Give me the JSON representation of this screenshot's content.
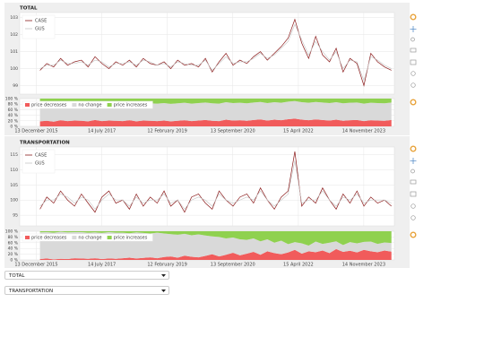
{
  "chart_data": [
    {
      "type": "line",
      "title": "TOTAL",
      "legend": "top_left",
      "grid": true,
      "x": [
        "2016-01-15",
        "2016-03-15",
        "2016-05-15",
        "2016-07-15",
        "2016-09-15",
        "2016-11-15",
        "2017-01-15",
        "2017-03-15",
        "2017-05-15",
        "2017-07-15",
        "2017-09-15",
        "2017-11-15",
        "2018-01-15",
        "2018-03-15",
        "2018-05-15",
        "2018-07-15",
        "2018-09-15",
        "2018-11-15",
        "2019-01-15",
        "2019-03-15",
        "2019-05-15",
        "2019-07-15",
        "2019-09-15",
        "2019-11-15",
        "2020-01-15",
        "2020-03-15",
        "2020-05-15",
        "2020-07-15",
        "2020-09-15",
        "2020-11-15",
        "2021-01-15",
        "2021-03-15",
        "2021-05-15",
        "2021-07-15",
        "2021-09-15",
        "2021-11-15",
        "2022-01-15",
        "2022-03-15",
        "2022-05-15",
        "2022-07-15",
        "2022-09-15",
        "2022-11-15",
        "2023-01-15",
        "2023-03-15",
        "2023-05-15",
        "2023-07-15",
        "2023-09-15",
        "2023-11-15",
        "2024-01-15",
        "2024-03-15",
        "2024-05-15",
        "2024-07-15"
      ],
      "xlim": [
        "2015-07-20",
        "2024-08-10"
      ],
      "ylim": [
        98.5,
        103.3
      ],
      "yticks": [
        99,
        100,
        101,
        102,
        103
      ],
      "series": [
        {
          "name": "CASE",
          "color": "#8b1a1a",
          "values": [
            99.9,
            100.3,
            100.1,
            100.6,
            100.2,
            100.4,
            100.5,
            100.1,
            100.7,
            100.3,
            100.0,
            100.4,
            100.2,
            100.5,
            100.1,
            100.6,
            100.3,
            100.2,
            100.4,
            100.0,
            100.5,
            100.2,
            100.3,
            100.1,
            100.6,
            99.8,
            100.4,
            100.9,
            100.2,
            100.5,
            100.3,
            100.7,
            101.0,
            100.5,
            100.9,
            101.3,
            101.8,
            102.9,
            101.5,
            100.6,
            101.9,
            100.8,
            100.4,
            101.2,
            99.8,
            100.6,
            100.3,
            99.0,
            100.9,
            100.4,
            100.1,
            99.9
          ]
        },
        {
          "name": "GUS",
          "color": "#c4c4c4",
          "values": [
            100.0,
            100.2,
            100.2,
            100.5,
            100.3,
            100.3,
            100.4,
            100.2,
            100.5,
            100.4,
            100.1,
            100.3,
            100.3,
            100.4,
            100.2,
            100.5,
            100.4,
            100.2,
            100.3,
            100.1,
            100.4,
            100.3,
            100.2,
            100.2,
            100.5,
            99.9,
            100.3,
            100.7,
            100.3,
            100.4,
            100.4,
            100.6,
            100.9,
            100.6,
            100.8,
            101.2,
            101.6,
            102.6,
            101.7,
            100.8,
            101.6,
            101.0,
            100.5,
            101.0,
            100.0,
            100.5,
            100.4,
            99.3,
            100.7,
            100.5,
            100.2,
            100.0
          ]
        }
      ]
    },
    {
      "type": "area",
      "legend": "top_left",
      "grid": true,
      "x": [
        "2016-01-15",
        "2016-03-15",
        "2016-05-15",
        "2016-07-15",
        "2016-09-15",
        "2016-11-15",
        "2017-01-15",
        "2017-03-15",
        "2017-05-15",
        "2017-07-15",
        "2017-09-15",
        "2017-11-15",
        "2018-01-15",
        "2018-03-15",
        "2018-05-15",
        "2018-07-15",
        "2018-09-15",
        "2018-11-15",
        "2019-01-15",
        "2019-03-15",
        "2019-05-15",
        "2019-07-15",
        "2019-09-15",
        "2019-11-15",
        "2020-01-15",
        "2020-03-15",
        "2020-05-15",
        "2020-07-15",
        "2020-09-15",
        "2020-11-15",
        "2021-01-15",
        "2021-03-15",
        "2021-05-15",
        "2021-07-15",
        "2021-09-15",
        "2021-11-15",
        "2022-01-15",
        "2022-03-15",
        "2022-05-15",
        "2022-07-15",
        "2022-09-15",
        "2022-11-15",
        "2023-01-15",
        "2023-03-15",
        "2023-05-15",
        "2023-07-15",
        "2023-09-15",
        "2023-11-15",
        "2024-01-15",
        "2024-03-15",
        "2024-05-15",
        "2024-07-15"
      ],
      "xlim": [
        "2015-07-20",
        "2024-08-10"
      ],
      "xticks": [
        {
          "value": "2015-12-13",
          "label": "13 December 2015"
        },
        {
          "value": "2017-07-14",
          "label": "14 July 2017"
        },
        {
          "value": "2019-02-12",
          "label": "12 February 2019"
        },
        {
          "value": "2020-09-13",
          "label": "13 September 2020"
        },
        {
          "value": "2022-04-15",
          "label": "15 April 2022"
        },
        {
          "value": "2023-11-14",
          "label": "14 November 2023"
        }
      ],
      "ylim": [
        0,
        100
      ],
      "yticks": [
        {
          "value": 0,
          "label": "0 %"
        },
        {
          "value": 20,
          "label": "20 %"
        },
        {
          "value": 40,
          "label": "40 %"
        },
        {
          "value": 60,
          "label": "60 %"
        },
        {
          "value": 80,
          "label": "80 %"
        },
        {
          "value": 100,
          "label": "100 %"
        }
      ],
      "series": [
        {
          "name": "price decreases",
          "color": "#f15b5b",
          "values": [
            18,
            20,
            17,
            22,
            19,
            21,
            20,
            18,
            23,
            19,
            21,
            20,
            19,
            22,
            18,
            21,
            20,
            19,
            21,
            18,
            20,
            22,
            19,
            21,
            23,
            20,
            19,
            24,
            21,
            22,
            20,
            23,
            25,
            21,
            24,
            22,
            26,
            28,
            24,
            22,
            25,
            23,
            21,
            24,
            20,
            22,
            23,
            19,
            22,
            21,
            20,
            23
          ]
        },
        {
          "name": "no change",
          "color": "#d9d9d9",
          "values": [
            64,
            64,
            64,
            63,
            64,
            63,
            63,
            63,
            62,
            63,
            63,
            63,
            63,
            63,
            63,
            63,
            63,
            63,
            63,
            63,
            63,
            63,
            63,
            63,
            63,
            63,
            63,
            63,
            63,
            63,
            63,
            63,
            63,
            63,
            63,
            63,
            63,
            63,
            63,
            63,
            63,
            63,
            63,
            63,
            63,
            63,
            63,
            63,
            63,
            63,
            63,
            63
          ]
        },
        {
          "name": "price increases",
          "color": "#8fd14f",
          "values": [
            18,
            16,
            19,
            15,
            17,
            16,
            17,
            19,
            15,
            18,
            16,
            17,
            18,
            15,
            19,
            16,
            17,
            18,
            16,
            19,
            17,
            15,
            18,
            16,
            14,
            17,
            18,
            13,
            16,
            15,
            17,
            14,
            12,
            16,
            13,
            15,
            11,
            9,
            13,
            15,
            12,
            14,
            16,
            13,
            17,
            15,
            14,
            18,
            15,
            16,
            17,
            14
          ]
        }
      ]
    },
    {
      "type": "line",
      "title": "TRANSPORTATION",
      "legend": "top_left",
      "grid": true,
      "x": [
        "2016-01-15",
        "2016-03-15",
        "2016-05-15",
        "2016-07-15",
        "2016-09-15",
        "2016-11-15",
        "2017-01-15",
        "2017-03-15",
        "2017-05-15",
        "2017-07-15",
        "2017-09-15",
        "2017-11-15",
        "2018-01-15",
        "2018-03-15",
        "2018-05-15",
        "2018-07-15",
        "2018-09-15",
        "2018-11-15",
        "2019-01-15",
        "2019-03-15",
        "2019-05-15",
        "2019-07-15",
        "2019-09-15",
        "2019-11-15",
        "2020-01-15",
        "2020-03-15",
        "2020-05-15",
        "2020-07-15",
        "2020-09-15",
        "2020-11-15",
        "2021-01-15",
        "2021-03-15",
        "2021-05-15",
        "2021-07-15",
        "2021-09-15",
        "2021-11-15",
        "2022-01-15",
        "2022-03-15",
        "2022-05-15",
        "2022-07-15",
        "2022-09-15",
        "2022-11-15",
        "2023-01-15",
        "2023-03-15",
        "2023-05-15",
        "2023-07-15",
        "2023-09-15",
        "2023-11-15",
        "2024-01-15",
        "2024-03-15",
        "2024-05-15",
        "2024-07-15"
      ],
      "xlim": [
        "2015-07-20",
        "2024-08-10"
      ],
      "ylim": [
        91.5,
        117.5
      ],
      "yticks": [
        95,
        100,
        105,
        110,
        115
      ],
      "series": [
        {
          "name": "CASE",
          "color": "#8b1a1a",
          "values": [
            97,
            101,
            99,
            103,
            100,
            98,
            102,
            99,
            96,
            101,
            103,
            99,
            100,
            97,
            102,
            98,
            101,
            99,
            103,
            98,
            100,
            96,
            101,
            102,
            99,
            97,
            103,
            100,
            98,
            101,
            102,
            99,
            104,
            100,
            97,
            101,
            103,
            116,
            98,
            101,
            99,
            104,
            100,
            97,
            102,
            99,
            103,
            98,
            101,
            99,
            100,
            98
          ]
        },
        {
          "name": "GUS",
          "color": "#c4c4c4",
          "values": [
            98,
            100,
            100,
            102,
            101,
            99,
            101,
            100,
            97,
            100,
            102,
            100,
            100,
            98,
            101,
            99,
            100,
            100,
            102,
            99,
            100,
            97,
            100,
            101,
            100,
            98,
            102,
            100,
            99,
            100,
            101,
            100,
            103,
            100,
            98,
            100,
            102,
            113,
            99,
            100,
            100,
            103,
            100,
            98,
            101,
            100,
            102,
            99,
            100,
            100,
            100,
            99
          ]
        }
      ]
    },
    {
      "type": "area",
      "legend": "top_left",
      "grid": true,
      "x": [
        "2016-01-15",
        "2016-03-15",
        "2016-05-15",
        "2016-07-15",
        "2016-09-15",
        "2016-11-15",
        "2017-01-15",
        "2017-03-15",
        "2017-05-15",
        "2017-07-15",
        "2017-09-15",
        "2017-11-15",
        "2018-01-15",
        "2018-03-15",
        "2018-05-15",
        "2018-07-15",
        "2018-09-15",
        "2018-11-15",
        "2019-01-15",
        "2019-03-15",
        "2019-05-15",
        "2019-07-15",
        "2019-09-15",
        "2019-11-15",
        "2020-01-15",
        "2020-03-15",
        "2020-05-15",
        "2020-07-15",
        "2020-09-15",
        "2020-11-15",
        "2021-01-15",
        "2021-03-15",
        "2021-05-15",
        "2021-07-15",
        "2021-09-15",
        "2021-11-15",
        "2022-01-15",
        "2022-03-15",
        "2022-05-15",
        "2022-07-15",
        "2022-09-15",
        "2022-11-15",
        "2023-01-15",
        "2023-03-15",
        "2023-05-15",
        "2023-07-15",
        "2023-09-15",
        "2023-11-15",
        "2024-01-15",
        "2024-03-15",
        "2024-05-15",
        "2024-07-15"
      ],
      "xlim": [
        "2015-07-20",
        "2024-08-10"
      ],
      "xticks": [
        {
          "value": "2015-12-13",
          "label": "13 December 2015"
        },
        {
          "value": "2017-07-14",
          "label": "14 July 2017"
        },
        {
          "value": "2019-02-12",
          "label": "12 February 2019"
        },
        {
          "value": "2020-09-13",
          "label": "13 September 2020"
        },
        {
          "value": "2022-04-15",
          "label": "15 April 2022"
        },
        {
          "value": "2023-11-14",
          "label": "14 November 2023"
        }
      ],
      "ylim": [
        0,
        100
      ],
      "yticks": [
        {
          "value": 0,
          "label": "0 %"
        },
        {
          "value": 20,
          "label": "20 %"
        },
        {
          "value": 40,
          "label": "40 %"
        },
        {
          "value": 60,
          "label": "60 %"
        },
        {
          "value": 80,
          "label": "80 %"
        },
        {
          "value": 100,
          "label": "100 %"
        }
      ],
      "series": [
        {
          "name": "price decreases",
          "color": "#f15b5b",
          "values": [
            3,
            5,
            2,
            4,
            3,
            6,
            5,
            4,
            6,
            3,
            5,
            4,
            6,
            8,
            5,
            7,
            9,
            6,
            10,
            12,
            8,
            15,
            11,
            9,
            14,
            20,
            12,
            18,
            25,
            16,
            22,
            28,
            18,
            30,
            24,
            20,
            26,
            35,
            22,
            30,
            27,
            33,
            24,
            38,
            28,
            32,
            26,
            35,
            30,
            27,
            33,
            29
          ]
        },
        {
          "name": "no change",
          "color": "#d9d9d9",
          "values": [
            93,
            92,
            93,
            94,
            93,
            91,
            92,
            91,
            90,
            91,
            92,
            91,
            89,
            85,
            91,
            87,
            83,
            89,
            82,
            78,
            80,
            76,
            75,
            80,
            71,
            62,
            68,
            57,
            53,
            56,
            48,
            47,
            47,
            42,
            36,
            47,
            29,
            27,
            36,
            20,
            37,
            23,
            36,
            27,
            24,
            30,
            32,
            28,
            34,
            29,
            28,
            30
          ]
        },
        {
          "name": "price increases",
          "color": "#8fd14f",
          "values": [
            4,
            3,
            5,
            2,
            4,
            3,
            3,
            5,
            4,
            6,
            3,
            5,
            5,
            7,
            4,
            6,
            8,
            5,
            8,
            10,
            12,
            9,
            14,
            11,
            15,
            18,
            20,
            25,
            22,
            28,
            30,
            25,
            35,
            28,
            40,
            33,
            45,
            38,
            42,
            50,
            36,
            44,
            40,
            35,
            48,
            38,
            42,
            37,
            36,
            44,
            39,
            41
          ]
        }
      ]
    }
  ],
  "controls": [
    {
      "value": "TOTAL"
    },
    {
      "value": "TRANSPORTATION"
    }
  ]
}
